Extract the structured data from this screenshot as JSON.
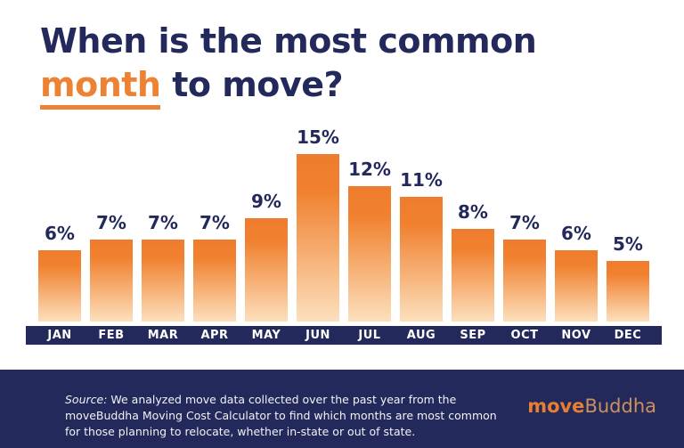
{
  "title": {
    "line1": "When is the most common",
    "highlight": "month",
    "line2_rest": " to move?"
  },
  "chart_data": {
    "type": "bar",
    "title": "When is the most common month to move?",
    "categories": [
      "JAN",
      "FEB",
      "MAR",
      "APR",
      "MAY",
      "JUN",
      "JUL",
      "AUG",
      "SEP",
      "OCT",
      "NOV",
      "DEC"
    ],
    "values": [
      6,
      7,
      7,
      7,
      9,
      15,
      12,
      11,
      8,
      7,
      6,
      5
    ],
    "unit": "%",
    "xlabel": "",
    "ylabel": "",
    "ylim": [
      0,
      15
    ],
    "grid": false,
    "legend": false,
    "colors": {
      "bar_gradient_top": "#ef7c2d",
      "bar_gradient_bottom": "#fce0bd",
      "value_label": "#232a5b",
      "axis_band": "#232a5b",
      "month_label": "#ffffff"
    }
  },
  "footer": {
    "source_label": "Source:",
    "source_text": " We analyzed move data collected over the past year from the moveBuddha Moving Cost Calculator to find which months are most common for those planning to relocate, whether in-state or out of state.",
    "logo": {
      "bold": "move",
      "light": "Buddha"
    }
  },
  "theme": {
    "navy": "#232a5b",
    "orange": "#ee8233",
    "background": "#ffffff"
  }
}
